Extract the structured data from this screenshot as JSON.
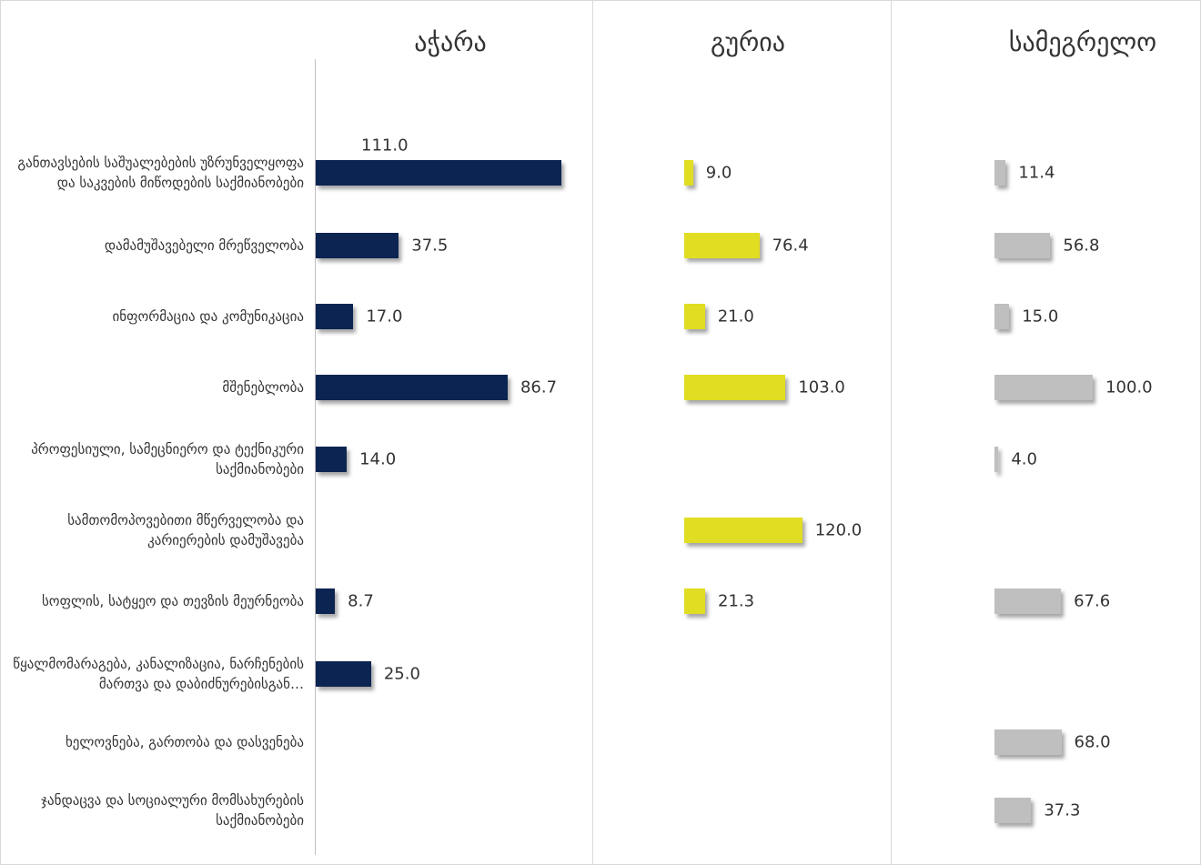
{
  "chart_data": [
    {
      "type": "bar",
      "title": "აჭარა",
      "color": "#0c2451",
      "xlim": [
        0,
        120
      ],
      "categories": [
        "განთავსების საშუალებების უზრუნველყოფა და საკვების მიწოდების საქმიანობები",
        "დამამუშავებელი მრეწველობა",
        "ინფორმაცია და კომუნიკაცია",
        "მშენებლობა",
        "პროფესიული, სამეცნიერო და ტექნიკური საქმიანობები",
        "სამთომოპოვებითი მწერველობა და კარიერების დამუშავება",
        "სოფლის, სატყეო და თევზის მეურნეობა",
        "წყალმომარაგება, კანალიზაცია, ნარჩენების მართვა და დაბიძნურებისგან…",
        "ხელოვნება, გართობა და დასვენება",
        "ჯანდაცვა და სოციალური მომსახურების საქმიანობები"
      ],
      "values": [
        111.0,
        37.5,
        17.0,
        86.7,
        14.0,
        null,
        8.7,
        25.0,
        null,
        null
      ],
      "value_labels": [
        "111.0",
        "37.5",
        "17.0",
        "86.7",
        "14.0",
        null,
        "8.7",
        "25.0",
        null,
        null
      ]
    },
    {
      "type": "bar",
      "title": "გურია",
      "color": "#e0dd22",
      "xlim": [
        0,
        185
      ],
      "values": [
        9.0,
        76.4,
        21.0,
        103.0,
        null,
        120.0,
        21.3,
        null,
        null,
        null
      ],
      "value_labels": [
        "9.0",
        "76.4",
        "21.0",
        "103.0",
        null,
        "120.0",
        "21.3",
        null,
        null,
        null
      ]
    },
    {
      "type": "bar",
      "title": "სამეგრელო",
      "color": "#bfbfbf",
      "xlim": [
        0,
        185
      ],
      "values": [
        11.4,
        56.8,
        15.0,
        100.0,
        4.0,
        null,
        67.6,
        null,
        68.0,
        37.3
      ],
      "value_labels": [
        "11.4",
        "56.8",
        "15.0",
        "100.0",
        "4.0",
        null,
        "67.6",
        null,
        "68.0",
        "37.3"
      ]
    }
  ]
}
